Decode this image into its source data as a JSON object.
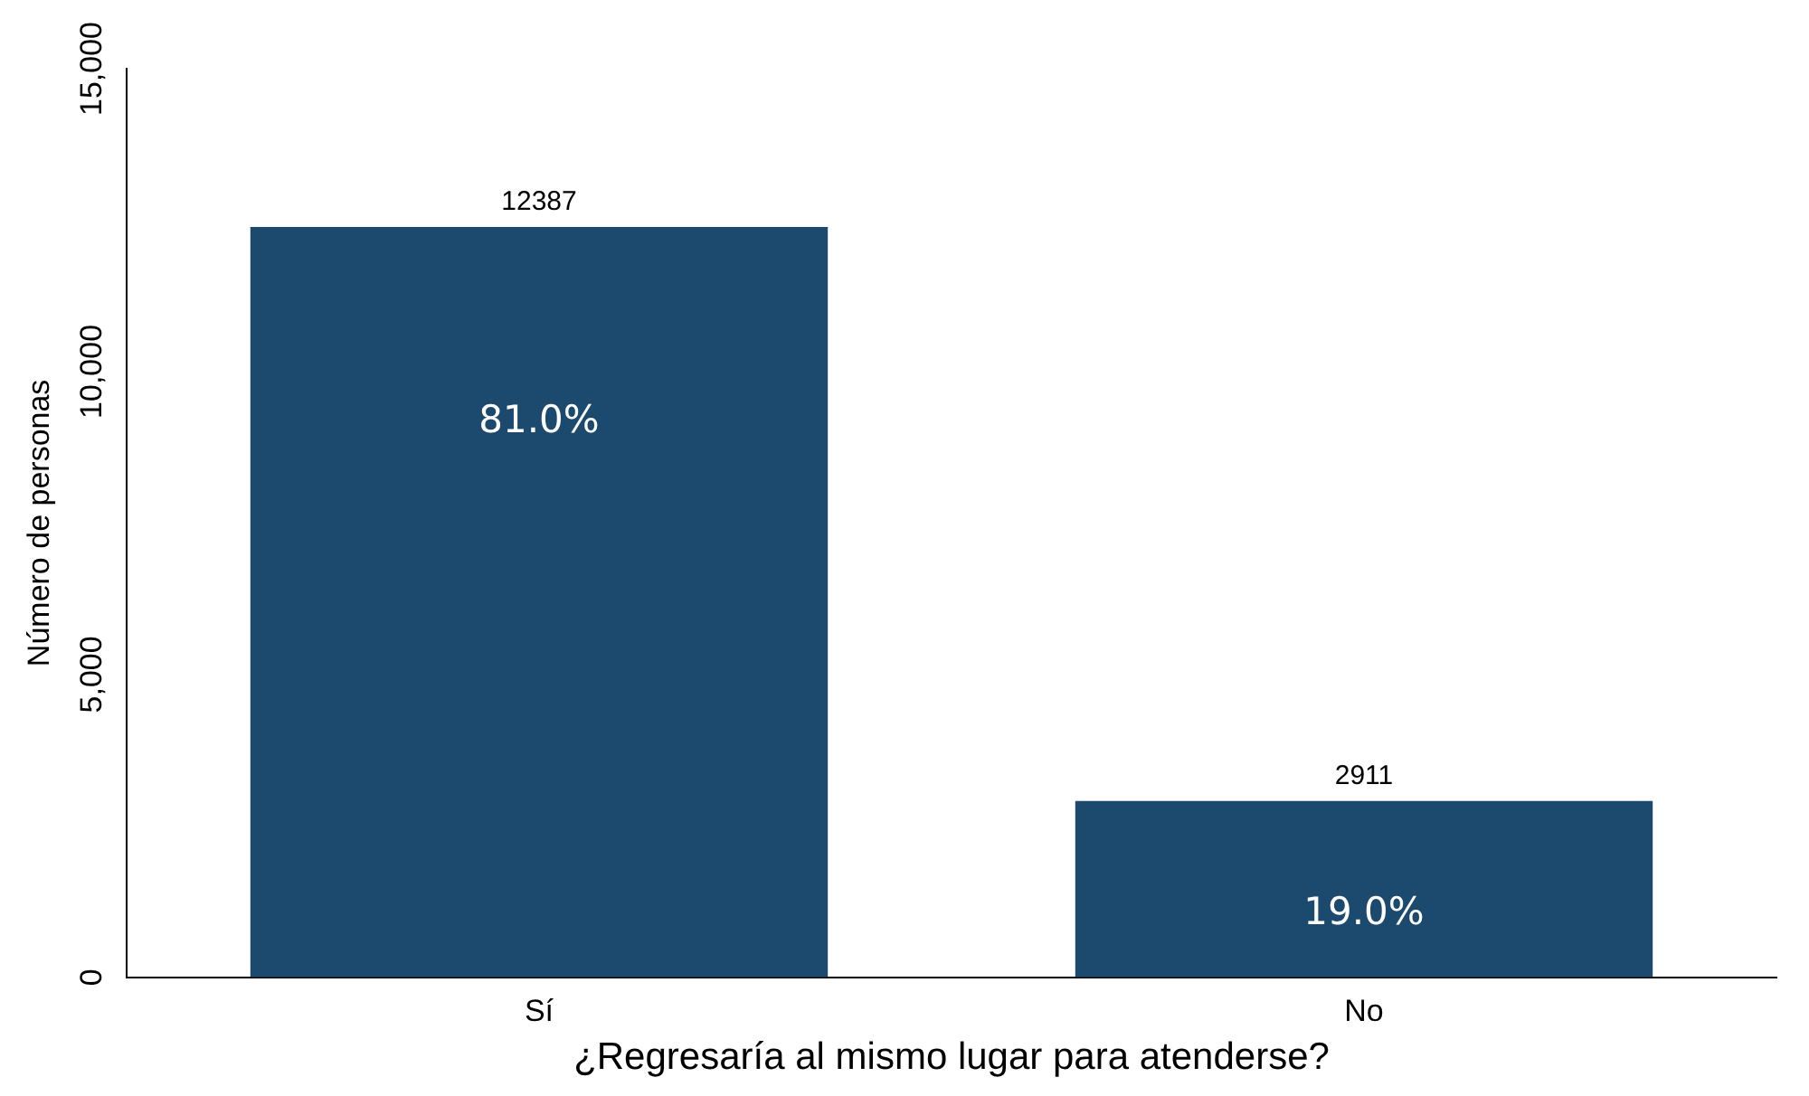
{
  "chart_data": {
    "type": "bar",
    "xlabel": "¿Regresaría al mismo lugar para atenderse?",
    "ylabel": "Número de personas",
    "categories": [
      "Sí",
      "No"
    ],
    "values": [
      12387,
      2911
    ],
    "color": "#1c4a6e",
    "ylim": [
      0,
      15000
    ],
    "yticks": [
      0,
      {
        "value": 5000,
        "label": "5,000"
      },
      {
        "value": 10000,
        "label": "10,000"
      },
      {
        "value": 15000,
        "label": "15,000"
      }
    ],
    "grid": false,
    "legend": false,
    "data_labels": true,
    "annotations": [
      "81.0%",
      "19.0%"
    ]
  }
}
